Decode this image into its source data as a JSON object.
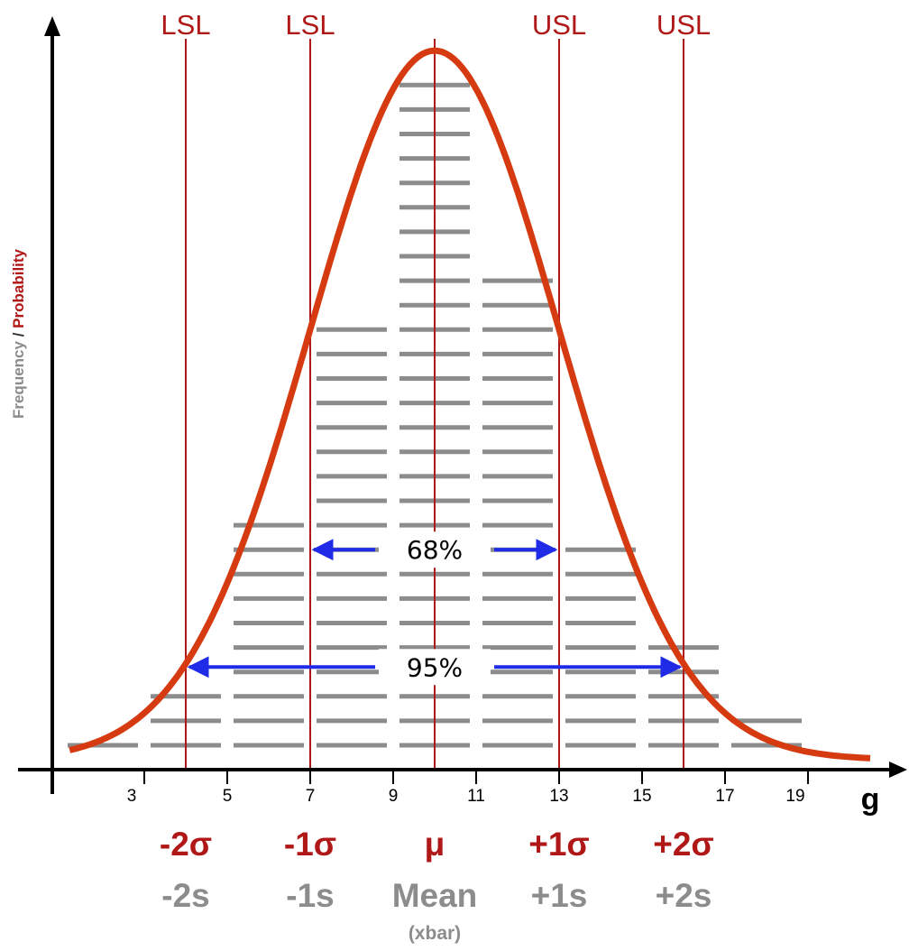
{
  "colors": {
    "curve": "#d63a10",
    "bars": "#8c8c8c",
    "spec_lines": "#b01717",
    "arrows": "#1f2be6",
    "axis": "#000000",
    "sigma_labels": "#b01717",
    "s_labels": "#8c8c8c"
  },
  "y_label": {
    "frequency": "Frequency",
    "separator": "/",
    "probability": "Probability"
  },
  "chart_data": {
    "type": "bar",
    "description_free": true,
    "xlabel": "g",
    "ylabel": "Frequency / Probability",
    "xlim": [
      1,
      21
    ],
    "ylim": [
      0,
      29.5
    ],
    "x_ticks": [
      3,
      5,
      7,
      9,
      11,
      13,
      15,
      17,
      19
    ],
    "bins": [
      {
        "from": 1,
        "to": 3,
        "count": 1
      },
      {
        "from": 3,
        "to": 5,
        "count": 3
      },
      {
        "from": 5,
        "to": 7,
        "count": 10
      },
      {
        "from": 7,
        "to": 9,
        "count": 18
      },
      {
        "from": 9,
        "to": 11,
        "count": 28
      },
      {
        "from": 11,
        "to": 13,
        "count": 20
      },
      {
        "from": 13,
        "to": 15,
        "count": 9
      },
      {
        "from": 15,
        "to": 17,
        "count": 5
      },
      {
        "from": 17,
        "to": 19,
        "count": 2
      }
    ],
    "curve": {
      "name": "normal",
      "mean": 10,
      "sigma": 3,
      "peak": 29,
      "x_range": [
        1.2,
        20.5
      ]
    },
    "spec_lines": [
      {
        "x": 4,
        "label": "LSL"
      },
      {
        "x": 7,
        "label": "LSL"
      },
      {
        "x": 10,
        "label": ""
      },
      {
        "x": 13,
        "label": "USL"
      },
      {
        "x": 16,
        "label": "USL"
      }
    ],
    "ranges": [
      {
        "from": 7,
        "to": 13,
        "label": "68%",
        "y": 9
      },
      {
        "from": 4,
        "to": 16,
        "label": "95%",
        "y": 4.2
      }
    ],
    "sigma_labels": [
      {
        "x": 4,
        "sigma": "-2σ",
        "s": "-2s",
        "extra": ""
      },
      {
        "x": 7,
        "sigma": "-1σ",
        "s": "-1s",
        "extra": ""
      },
      {
        "x": 10,
        "sigma": "μ",
        "s": "Mean",
        "extra": "(xbar)"
      },
      {
        "x": 13,
        "sigma": "+1σ",
        "s": "+1s",
        "extra": ""
      },
      {
        "x": 16,
        "sigma": "+2σ",
        "s": "+2s",
        "extra": ""
      }
    ]
  }
}
